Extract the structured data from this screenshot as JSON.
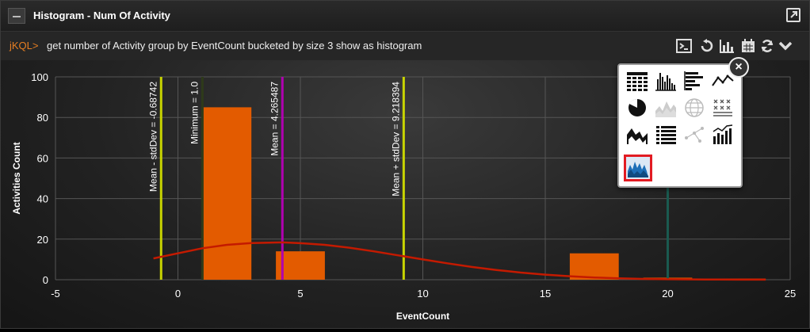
{
  "header": {
    "title": "Histogram - Num Of Activity"
  },
  "query": {
    "prompt": "jKQL>",
    "text": "get number of Activity group by EventCount bucketed by size 3 show as histogram"
  },
  "toolbar": [
    "console-icon",
    "undo-icon",
    "bar-chart-icon",
    "calendar-icon",
    "refresh-icon",
    "chevron-down-icon"
  ],
  "chart_type_picker": {
    "close_label": "×",
    "types": [
      "table",
      "column",
      "bar",
      "line",
      "pie",
      "stacked-area",
      "globe",
      "scatter-matrix",
      "area",
      "list",
      "network",
      "bar-line-combo",
      "histogram"
    ],
    "selected": "histogram"
  },
  "colors": {
    "bar": "#e35b00",
    "curve": "#c41a00",
    "mean_line": "#b000b0",
    "stddev_line": "#c8d400",
    "minimum_line": "#2e3a1a",
    "extra_line": "#1a5a50"
  },
  "chart_data": {
    "type": "bar",
    "xlabel": "EventCount",
    "ylabel": "Activities Count",
    "xlim": [
      -5,
      25
    ],
    "ylim": [
      0,
      100
    ],
    "xticks": [
      -5,
      0,
      5,
      10,
      15,
      20,
      25
    ],
    "yticks": [
      0,
      20,
      40,
      60,
      80,
      100
    ],
    "grid": true,
    "bars": [
      {
        "x0": 1,
        "x1": 3,
        "value": 85
      },
      {
        "x0": 4,
        "x1": 6,
        "value": 14
      },
      {
        "x0": 16,
        "x1": 18,
        "value": 13
      },
      {
        "x0": 19,
        "x1": 21,
        "value": 1
      },
      {
        "x0": 21,
        "x1": 24,
        "value": 0.5
      }
    ],
    "curve": [
      [
        -1,
        10.5
      ],
      [
        0,
        13
      ],
      [
        1,
        15.5
      ],
      [
        2,
        17.2
      ],
      [
        3,
        18.1
      ],
      [
        4.27,
        18.4
      ],
      [
        5,
        18
      ],
      [
        6,
        17.2
      ],
      [
        7,
        15.8
      ],
      [
        8,
        14
      ],
      [
        9,
        12
      ],
      [
        10,
        10
      ],
      [
        11,
        8.1
      ],
      [
        12,
        6.3
      ],
      [
        13,
        4.8
      ],
      [
        14,
        3.5
      ],
      [
        15,
        2.5
      ],
      [
        16,
        1.7
      ],
      [
        17,
        1.1
      ],
      [
        18,
        0.7
      ],
      [
        19,
        0.4
      ],
      [
        20,
        0.25
      ],
      [
        21,
        0.15
      ],
      [
        22,
        0.08
      ],
      [
        23,
        0.04
      ],
      [
        24,
        0.02
      ]
    ],
    "vlines": [
      {
        "x": -0.68742,
        "label": "Mean - stdDev = -0.68742",
        "kind": "stddev"
      },
      {
        "x": 1.0,
        "label": "Minimum = 1.0",
        "kind": "minimum"
      },
      {
        "x": 4.265487,
        "label": "Mean = 4.265487",
        "kind": "mean"
      },
      {
        "x": 9.218394,
        "label": "Mean + stdDev = 9.218394",
        "kind": "stddev"
      },
      {
        "x": 20.0,
        "label": "",
        "kind": "extra"
      }
    ]
  }
}
